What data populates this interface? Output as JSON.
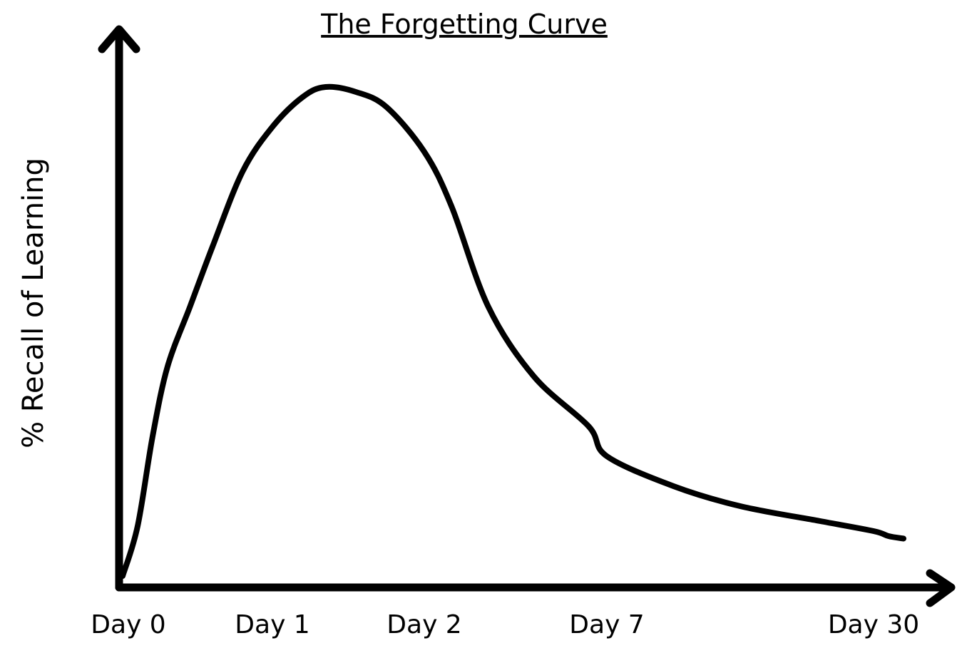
{
  "chart_data": {
    "type": "line",
    "title": "The Forgetting Curve",
    "xlabel": "",
    "ylabel": "% Recall of Learning",
    "x_tick_labels": [
      "Day 0",
      "Day 1",
      "Day 2",
      "Day 7",
      "Day 30"
    ],
    "y_ticks": [],
    "grid": false,
    "legend": "none",
    "ylim": [
      0,
      100
    ],
    "series": [
      {
        "values": [
          {
            "t": 0.0,
            "y": 2
          },
          {
            "t": 0.1,
            "y": 12
          },
          {
            "t": 0.2,
            "y": 30
          },
          {
            "t": 0.3,
            "y": 44
          },
          {
            "t": 0.45,
            "y": 56
          },
          {
            "t": 0.6,
            "y": 68
          },
          {
            "t": 0.8,
            "y": 83
          },
          {
            "t": 1.0,
            "y": 92
          },
          {
            "t": 1.2,
            "y": 98
          },
          {
            "t": 1.35,
            "y": 100
          },
          {
            "t": 1.55,
            "y": 99
          },
          {
            "t": 1.75,
            "y": 96
          },
          {
            "t": 2.0,
            "y": 87
          },
          {
            "t": 2.15,
            "y": 76
          },
          {
            "t": 2.35,
            "y": 56
          },
          {
            "t": 2.6,
            "y": 42
          },
          {
            "t": 2.9,
            "y": 32
          },
          {
            "t": 3.0,
            "y": 26
          },
          {
            "t": 3.25,
            "y": 20
          },
          {
            "t": 3.5,
            "y": 16
          },
          {
            "t": 3.8,
            "y": 13
          },
          {
            "t": 4.0,
            "y": 11
          },
          {
            "t": 4.2,
            "y": 10
          },
          {
            "t": 4.4,
            "y": 9.5
          }
        ]
      }
    ]
  }
}
